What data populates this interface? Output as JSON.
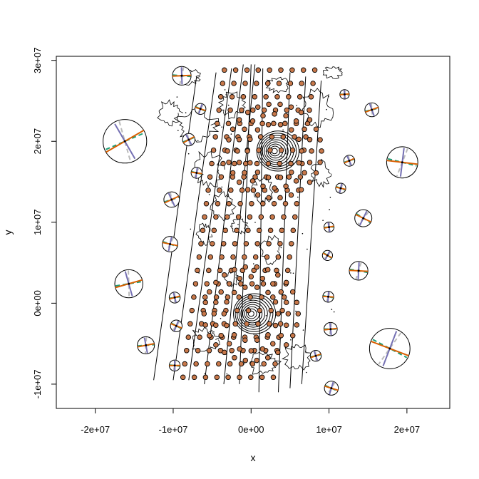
{
  "chart_data": {
    "type": "scatter",
    "title": "",
    "xlabel": "x",
    "ylabel": "y",
    "xlim": [
      -25000000,
      25500000
    ],
    "ylim": [
      -13000000,
      30500000
    ],
    "x_ticks": [
      {
        "value": -20000000,
        "label": "-2e+07"
      },
      {
        "value": -10000000,
        "label": "-1e+07"
      },
      {
        "value": 0,
        "label": "0e+00"
      },
      {
        "value": 10000000,
        "label": "1e+07"
      },
      {
        "value": 20000000,
        "label": "2e+07"
      }
    ],
    "y_ticks": [
      {
        "value": -10000000,
        "label": "-1e+07"
      },
      {
        "value": 0,
        "label": "0e+00"
      },
      {
        "value": 10000000,
        "label": "1e+07"
      },
      {
        "value": 20000000,
        "label": "2e+07"
      },
      {
        "value": 30000000,
        "label": "3e+07"
      }
    ],
    "grid": false,
    "colors": {
      "point_fill": "#c8784a",
      "point_edge": "#000000",
      "orange_axis": "#d95f02",
      "purple_axis": "#7570b3",
      "green_axis": "#1b9e77",
      "grey_axis": "#bbbbbb"
    },
    "grid_lines": [
      {
        "x": [
          -12500000,
          -7000000
        ],
        "y": [
          -9500000,
          28000000
        ]
      },
      {
        "x": [
          -10000000,
          -4500000
        ],
        "y": [
          -9500000,
          28500000
        ]
      },
      {
        "x": [
          -8000000,
          -2500000
        ],
        "y": [
          -9500000,
          29000000
        ]
      },
      {
        "x": [
          -6000000,
          -1000000
        ],
        "y": [
          -10000000,
          29500000
        ]
      },
      {
        "x": [
          -3500000,
          500000
        ],
        "y": [
          -10000000,
          29500000
        ]
      },
      {
        "x": [
          -1500000,
          0
        ],
        "y": [
          -10000000,
          29500000
        ]
      },
      {
        "x": [
          1000000,
          1500000
        ],
        "y": [
          -11000000,
          29000000
        ]
      },
      {
        "x": [
          3500000,
          5000000
        ],
        "y": [
          -11000000,
          28500000
        ]
      },
      {
        "x": [
          5000000,
          7000000
        ],
        "y": [
          -10500000,
          28000000
        ]
      },
      {
        "x": [
          6500000,
          9000000
        ],
        "y": [
          -10000000,
          27500000
        ]
      }
    ],
    "rings": [
      {
        "cx": 3000000,
        "cy": 18800000
      },
      {
        "cx": 0,
        "cy": -1300000
      }
    ],
    "ellipses": [
      {
        "x": -16200000,
        "y": 20000000,
        "r": 2800000
      },
      {
        "x": 19400000,
        "y": 17400000,
        "r": 2000000
      },
      {
        "x": -15700000,
        "y": 2400000,
        "r": 1800000
      },
      {
        "x": 17800000,
        "y": -5600000,
        "r": 2600000
      },
      {
        "x": -8900000,
        "y": 28100000,
        "r": 1200000
      },
      {
        "x": -10200000,
        "y": 12800000,
        "r": 1000000
      },
      {
        "x": -10400000,
        "y": 7300000,
        "r": 1000000
      },
      {
        "x": -13500000,
        "y": -5200000,
        "r": 1100000
      },
      {
        "x": 14400000,
        "y": 10500000,
        "r": 1100000
      },
      {
        "x": 13800000,
        "y": 4000000,
        "r": 1200000
      },
      {
        "x": 15500000,
        "y": 23900000,
        "r": 900000
      },
      {
        "x": 10300000,
        "y": -10500000,
        "r": 900000
      },
      {
        "x": 10200000,
        "y": -3200000,
        "r": 850000
      },
      {
        "x": -8000000,
        "y": 20200000,
        "r": 800000
      },
      {
        "x": -7000000,
        "y": 16100000,
        "r": 700000
      },
      {
        "x": -9800000,
        "y": 700000,
        "r": 700000
      },
      {
        "x": -9600000,
        "y": -2800000,
        "r": 750000
      },
      {
        "x": -9800000,
        "y": -7700000,
        "r": 700000
      },
      {
        "x": 12600000,
        "y": 17600000,
        "r": 700000
      },
      {
        "x": 11500000,
        "y": 14200000,
        "r": 650000
      },
      {
        "x": 10000000,
        "y": 9400000,
        "r": 650000
      },
      {
        "x": 9800000,
        "y": 5900000,
        "r": 650000
      },
      {
        "x": 9900000,
        "y": 800000,
        "r": 700000
      },
      {
        "x": 8300000,
        "y": -6500000,
        "r": 700000
      },
      {
        "x": -6500000,
        "y": 24000000,
        "r": 700000
      },
      {
        "x": 12000000,
        "y": 25800000,
        "r": 600000
      }
    ]
  }
}
